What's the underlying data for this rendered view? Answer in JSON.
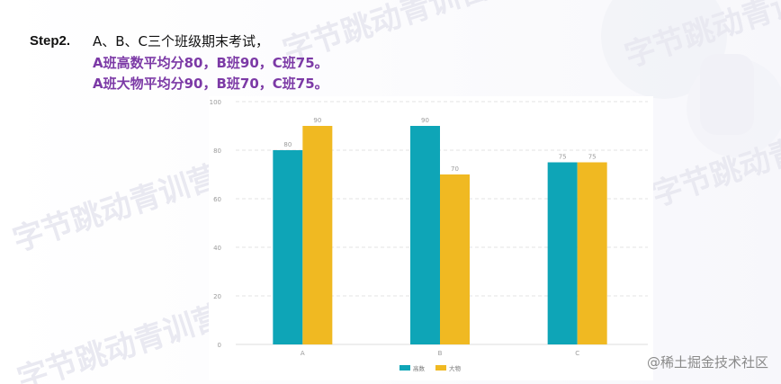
{
  "watermark": "字节跳动青训营",
  "step": {
    "label": "Step2.",
    "lines": [
      "A、B、C三个班级期末考试，",
      "A班高数平均分80，B班90，C班75。",
      "A班大物平均分90，B班70，C班75。"
    ]
  },
  "site_tag": "@稀土掘金技术社区",
  "colors": {
    "series_math": "#0ea5b7",
    "series_physics": "#f0b922",
    "highlight_text": "#7c3aa6",
    "grid": "#e3e3e3",
    "axis_text": "#9a9a9a"
  },
  "chart_data": {
    "type": "bar",
    "categories": [
      "A",
      "B",
      "C"
    ],
    "series": [
      {
        "name": "高数",
        "values": [
          80,
          90,
          75
        ]
      },
      {
        "name": "大物",
        "values": [
          90,
          70,
          75
        ]
      }
    ],
    "y_ticks": [
      0,
      20,
      40,
      60,
      80,
      100
    ],
    "ylim": [
      0,
      100
    ],
    "grid": true,
    "legend_position": "bottom-center",
    "data_labels": true
  }
}
